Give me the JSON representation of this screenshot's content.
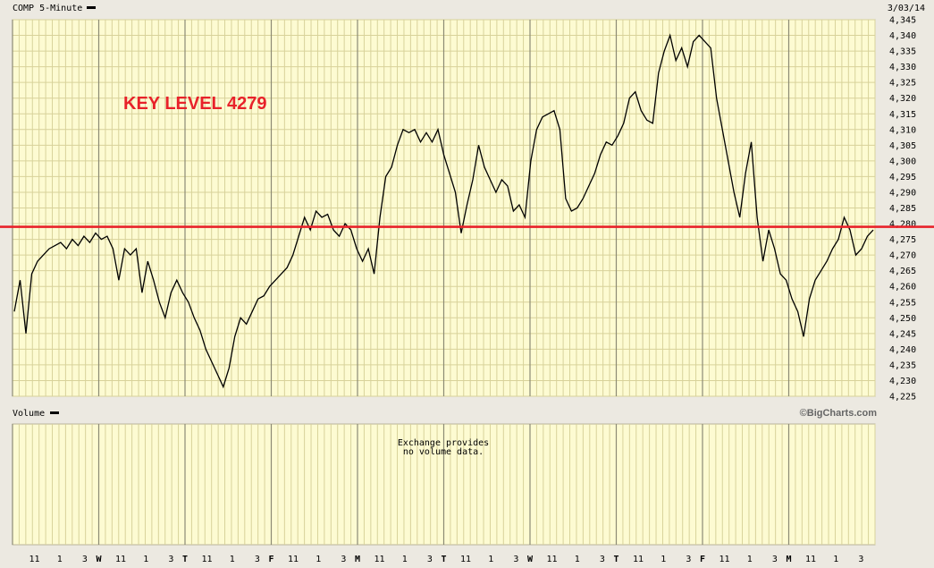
{
  "header": {
    "symbol_label": "COMP 5-Minute",
    "date": "3/03/14"
  },
  "volume": {
    "label": "Volume",
    "message_line1": "Exchange provides",
    "message_line2": "no volume data."
  },
  "copyright": "©BigCharts.com",
  "annotation": "KEY LEVEL 4279",
  "colors": {
    "plot_bg": "#fdfbd2",
    "grid": "#d8d29a",
    "key_line": "#e8222a",
    "price_line": "#000000",
    "frame_bg": "#ece9e1"
  },
  "chart_data": {
    "type": "line",
    "title": "",
    "xlabel": "",
    "ylabel": "",
    "ylim": [
      4225,
      4345
    ],
    "y_ticks": [
      "4,225",
      "4,230",
      "4,235",
      "4,240",
      "4,245",
      "4,250",
      "4,255",
      "4,260",
      "4,265",
      "4,270",
      "4,275",
      "4,280",
      "4,285",
      "4,290",
      "4,295",
      "4,300",
      "4,305",
      "4,310",
      "4,315",
      "4,320",
      "4,325",
      "4,330",
      "4,335",
      "4,340",
      "4,345"
    ],
    "x_tick_labels": [
      "11",
      "1",
      "3",
      "W",
      "11",
      "1",
      "3",
      "T",
      "11",
      "1",
      "3",
      "F",
      "11",
      "1",
      "3",
      "M",
      "11",
      "1",
      "3",
      "T",
      "11",
      "1",
      "3",
      "W",
      "11",
      "1",
      "3",
      "T",
      "11",
      "1",
      "3",
      "F",
      "11",
      "1",
      "3",
      "M",
      "11",
      "1",
      "3"
    ],
    "horizontal_line": {
      "value": 4279,
      "label": "KEY LEVEL 4279"
    },
    "grid": true,
    "series": [
      {
        "values": [
          4252,
          4262,
          4245,
          4264,
          4268,
          4270,
          4272,
          4273,
          4274,
          4272,
          4275,
          4273,
          4276,
          4274,
          4277,
          4275,
          4276,
          4272,
          4262,
          4272,
          4270,
          4272,
          4258,
          4268,
          4262,
          4255,
          4250,
          4258,
          4262,
          4258,
          4255,
          4250,
          4246,
          4240,
          4236,
          4232,
          4228,
          4234,
          4244,
          4250,
          4248,
          4252,
          4256,
          4257,
          4260,
          4262,
          4264,
          4266,
          4270,
          4276,
          4282,
          4278,
          4284,
          4282,
          4283,
          4278,
          4276,
          4280,
          4278,
          4272,
          4268,
          4272,
          4264,
          4282,
          4295,
          4298,
          4305,
          4310,
          4309,
          4310,
          4306,
          4309,
          4306,
          4310,
          4302,
          4296,
          4290,
          4277,
          4286,
          4294,
          4305,
          4298,
          4294,
          4290,
          4294,
          4292,
          4284,
          4286,
          4282,
          4300,
          4310,
          4314,
          4315,
          4316,
          4310,
          4288,
          4284,
          4285,
          4288,
          4292,
          4296,
          4302,
          4306,
          4305,
          4308,
          4312,
          4320,
          4322,
          4316,
          4313,
          4312,
          4328,
          4335,
          4340,
          4332,
          4336,
          4330,
          4338,
          4340,
          4338,
          4336,
          4320,
          4310,
          4300,
          4290,
          4282,
          4296,
          4306,
          4282,
          4268,
          4278,
          4272,
          4264,
          4262,
          4256,
          4252,
          4244,
          4256,
          4262,
          4265,
          4268,
          4272,
          4275,
          4282,
          4278,
          4270,
          4272,
          4276,
          4278
        ]
      }
    ]
  }
}
